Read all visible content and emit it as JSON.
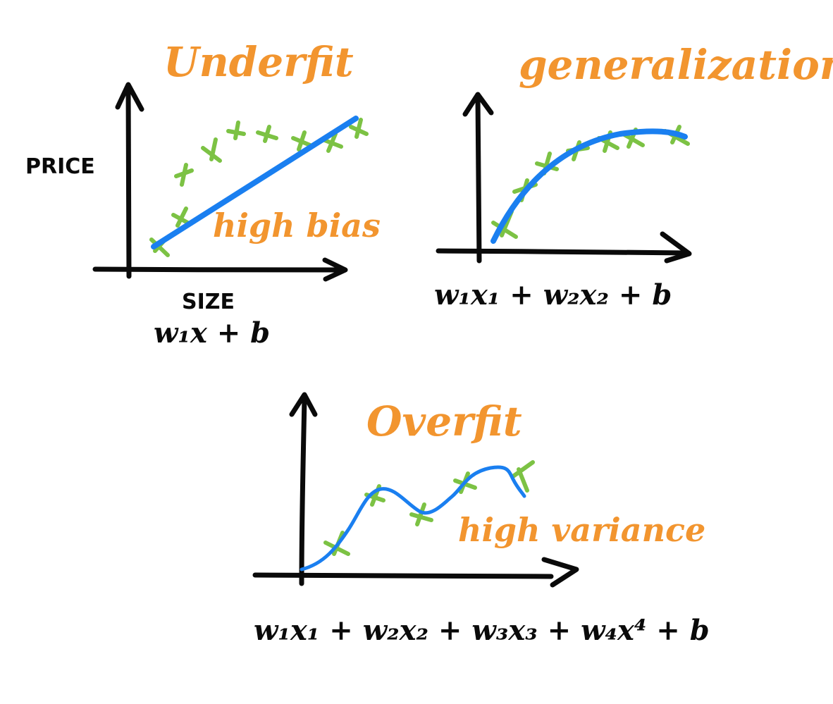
{
  "colors": {
    "ink": "#0a0a0a",
    "annotation": "#f2952f",
    "curve": "#1a7ff0",
    "points": "#7cc244"
  },
  "panels": {
    "underfit": {
      "title": "Underfit",
      "note": "high bias",
      "y_label": "PRICE",
      "x_label": "SIZE",
      "formula": "w₁x + b"
    },
    "generalization": {
      "title": "generalization",
      "formula": "w₁x₁ + w₂x₂ + b"
    },
    "overfit": {
      "title": "Overfit",
      "note": "high variance",
      "formula": "w₁x₁ + w₂x₂ + w₃x₃ + w₄x⁴ + b"
    }
  }
}
